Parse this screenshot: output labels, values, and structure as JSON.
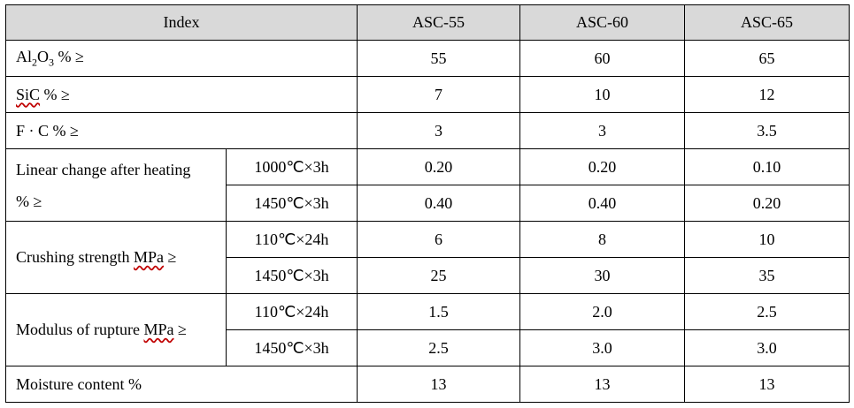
{
  "header": {
    "index": "Index",
    "cols": [
      "ASC-55",
      "ASC-60",
      "ASC-65"
    ]
  },
  "rows": {
    "al2o3": {
      "pre": "Al",
      "sub1": "2",
      "mid": "O",
      "sub2": "3",
      "post": " % ≥",
      "values": [
        "55",
        "60",
        "65"
      ]
    },
    "sic": {
      "label_main": "SiC",
      "label_rest": " % ≥",
      "values": [
        "7",
        "10",
        "12"
      ]
    },
    "fc": {
      "label": "F · C % ≥",
      "values": [
        "3",
        "3",
        "3.5"
      ]
    },
    "linear": {
      "label_line1": "Linear change after heating",
      "label_line2": "% ≥",
      "sub": [
        {
          "cond": "1000℃×3h",
          "values": [
            "0.20",
            "0.20",
            "0.10"
          ]
        },
        {
          "cond": "1450℃×3h",
          "values": [
            "0.40",
            "0.40",
            "0.20"
          ]
        }
      ]
    },
    "crushing": {
      "label_main": "Crushing strength ",
      "label_unit": "MPa",
      "label_rest": " ≥",
      "sub": [
        {
          "cond": "110℃×24h",
          "values": [
            "6",
            "8",
            "10"
          ]
        },
        {
          "cond": "1450℃×3h",
          "values": [
            "25",
            "30",
            "35"
          ]
        }
      ]
    },
    "modulus": {
      "label_main": "Modulus of rupture ",
      "label_unit": "MPa",
      "label_rest": " ≥",
      "sub": [
        {
          "cond": "110℃×24h",
          "values": [
            "1.5",
            "2.0",
            "2.5"
          ]
        },
        {
          "cond": "1450℃×3h",
          "values": [
            "2.5",
            "3.0",
            "3.0"
          ]
        }
      ]
    },
    "moisture": {
      "label": "Moisture content %",
      "values": [
        "13",
        "13",
        "13"
      ]
    }
  }
}
